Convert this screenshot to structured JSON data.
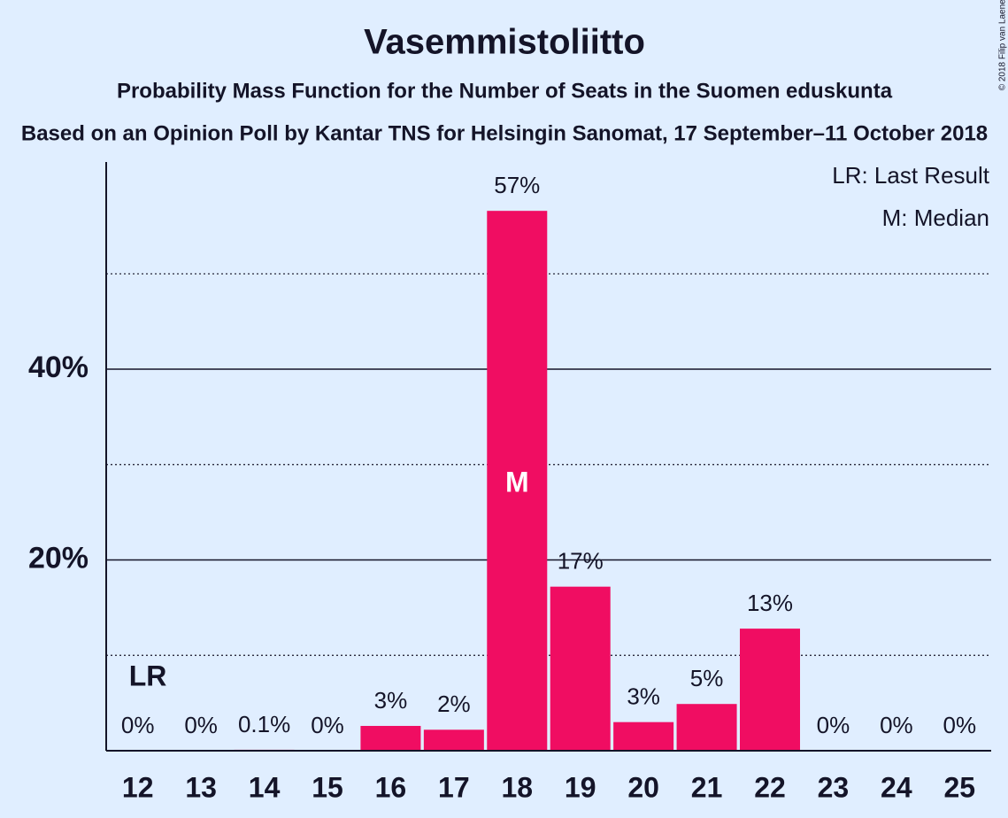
{
  "chart_data": {
    "type": "bar",
    "title": "Vasemmistoliitto",
    "subtitle": "Probability Mass Function for the Number of Seats in the Suomen eduskunta",
    "subtitle2": "Based on an Opinion Poll by Kantar TNS for Helsingin Sanomat, 17 September–11 October 2018",
    "copyright": "© 2018 Filip van Laenen",
    "categories": [
      12,
      13,
      14,
      15,
      16,
      17,
      18,
      19,
      20,
      21,
      22,
      23,
      24,
      25
    ],
    "values": [
      0,
      0,
      0.1,
      0,
      2.6,
      2.2,
      56.6,
      17.2,
      3.0,
      4.9,
      12.8,
      0,
      0,
      0
    ],
    "value_labels": [
      "0%",
      "0%",
      "0.1%",
      "0%",
      "3%",
      "2%",
      "57%",
      "17%",
      "3%",
      "5%",
      "13%",
      "0%",
      "0%",
      "0%"
    ],
    "color": "#f00d62",
    "ylim": [
      0,
      62
    ],
    "yticks": [
      {
        "value": 20,
        "label": "20%"
      },
      {
        "value": 40,
        "label": "40%"
      }
    ],
    "minor_yticks": [
      10,
      30,
      50
    ],
    "grid": true,
    "last_result": 12,
    "last_result_label": "LR",
    "median": 18,
    "median_label": "M",
    "legend": [
      "LR: Last Result",
      "M: Median"
    ]
  }
}
